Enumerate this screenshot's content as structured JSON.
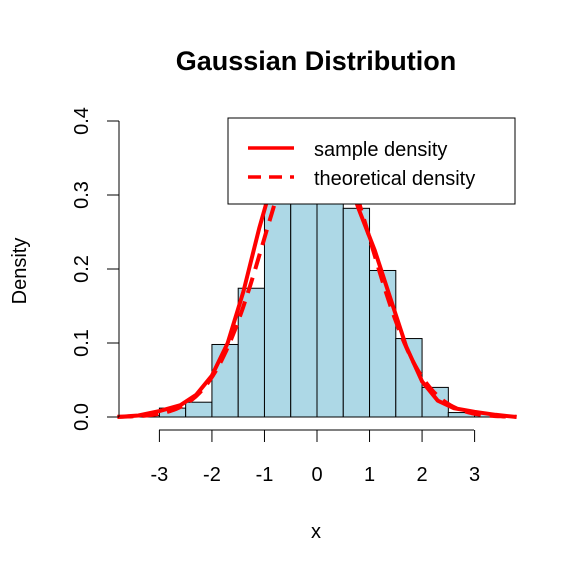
{
  "chart_data": {
    "type": "bar",
    "title": "Gaussian Distribution",
    "xlabel": "x",
    "ylabel": "Density",
    "xlim": [
      -3.75,
      3.75
    ],
    "ylim": [
      0,
      0.4
    ],
    "x_ticks": [
      -3,
      -2,
      -1,
      0,
      1,
      2,
      3
    ],
    "x_tick_labels": [
      "-3",
      "-2",
      "-1",
      "0",
      "1",
      "2",
      "3"
    ],
    "y_ticks": [
      0,
      0.1,
      0.2,
      0.3,
      0.4
    ],
    "y_tick_labels": [
      "0.0",
      "0.1",
      "0.2",
      "0.3",
      "0.4"
    ],
    "grid": false,
    "bar_fill": "#ADD8E6",
    "histogram": {
      "bin_edges": [
        -3.5,
        -3.0,
        -2.5,
        -2.0,
        -1.5,
        -1.0,
        -0.5,
        0.0,
        0.5,
        1.0,
        1.5,
        2.0,
        2.5,
        3.0,
        3.5
      ],
      "values": [
        0.002,
        0.012,
        0.02,
        0.098,
        0.174,
        0.32,
        0.39,
        0.39,
        0.282,
        0.198,
        0.106,
        0.04,
        0.006,
        0.004
      ]
    },
    "series": [
      {
        "name": "sample density",
        "color": "#FF0000",
        "dash": "solid",
        "x": [
          -3.8,
          -3.4,
          -3.0,
          -2.6,
          -2.3,
          -2.0,
          -1.7,
          -1.4,
          -1.1,
          -0.8,
          -0.5,
          -0.2,
          0.0,
          0.2,
          0.5,
          0.8,
          1.1,
          1.4,
          1.7,
          2.0,
          2.3,
          2.6,
          3.0,
          3.4,
          3.8
        ],
        "y": [
          0.0,
          0.002,
          0.008,
          0.016,
          0.03,
          0.056,
          0.1,
          0.17,
          0.255,
          0.33,
          0.38,
          0.39,
          0.39,
          0.385,
          0.34,
          0.28,
          0.225,
          0.16,
          0.095,
          0.048,
          0.022,
          0.012,
          0.007,
          0.003,
          0.0
        ]
      },
      {
        "name": "theoretical density",
        "color": "#FF0000",
        "dash": "dashed",
        "function": "normal_pdf",
        "mean": 0,
        "sd": 1,
        "x_range": [
          -3.8,
          3.8
        ]
      }
    ],
    "legend": {
      "position": "top-right",
      "entries": [
        {
          "label": "sample density",
          "dash": "solid",
          "color": "#FF0000"
        },
        {
          "label": "theoretical density",
          "dash": "dashed",
          "color": "#FF0000"
        }
      ]
    }
  }
}
